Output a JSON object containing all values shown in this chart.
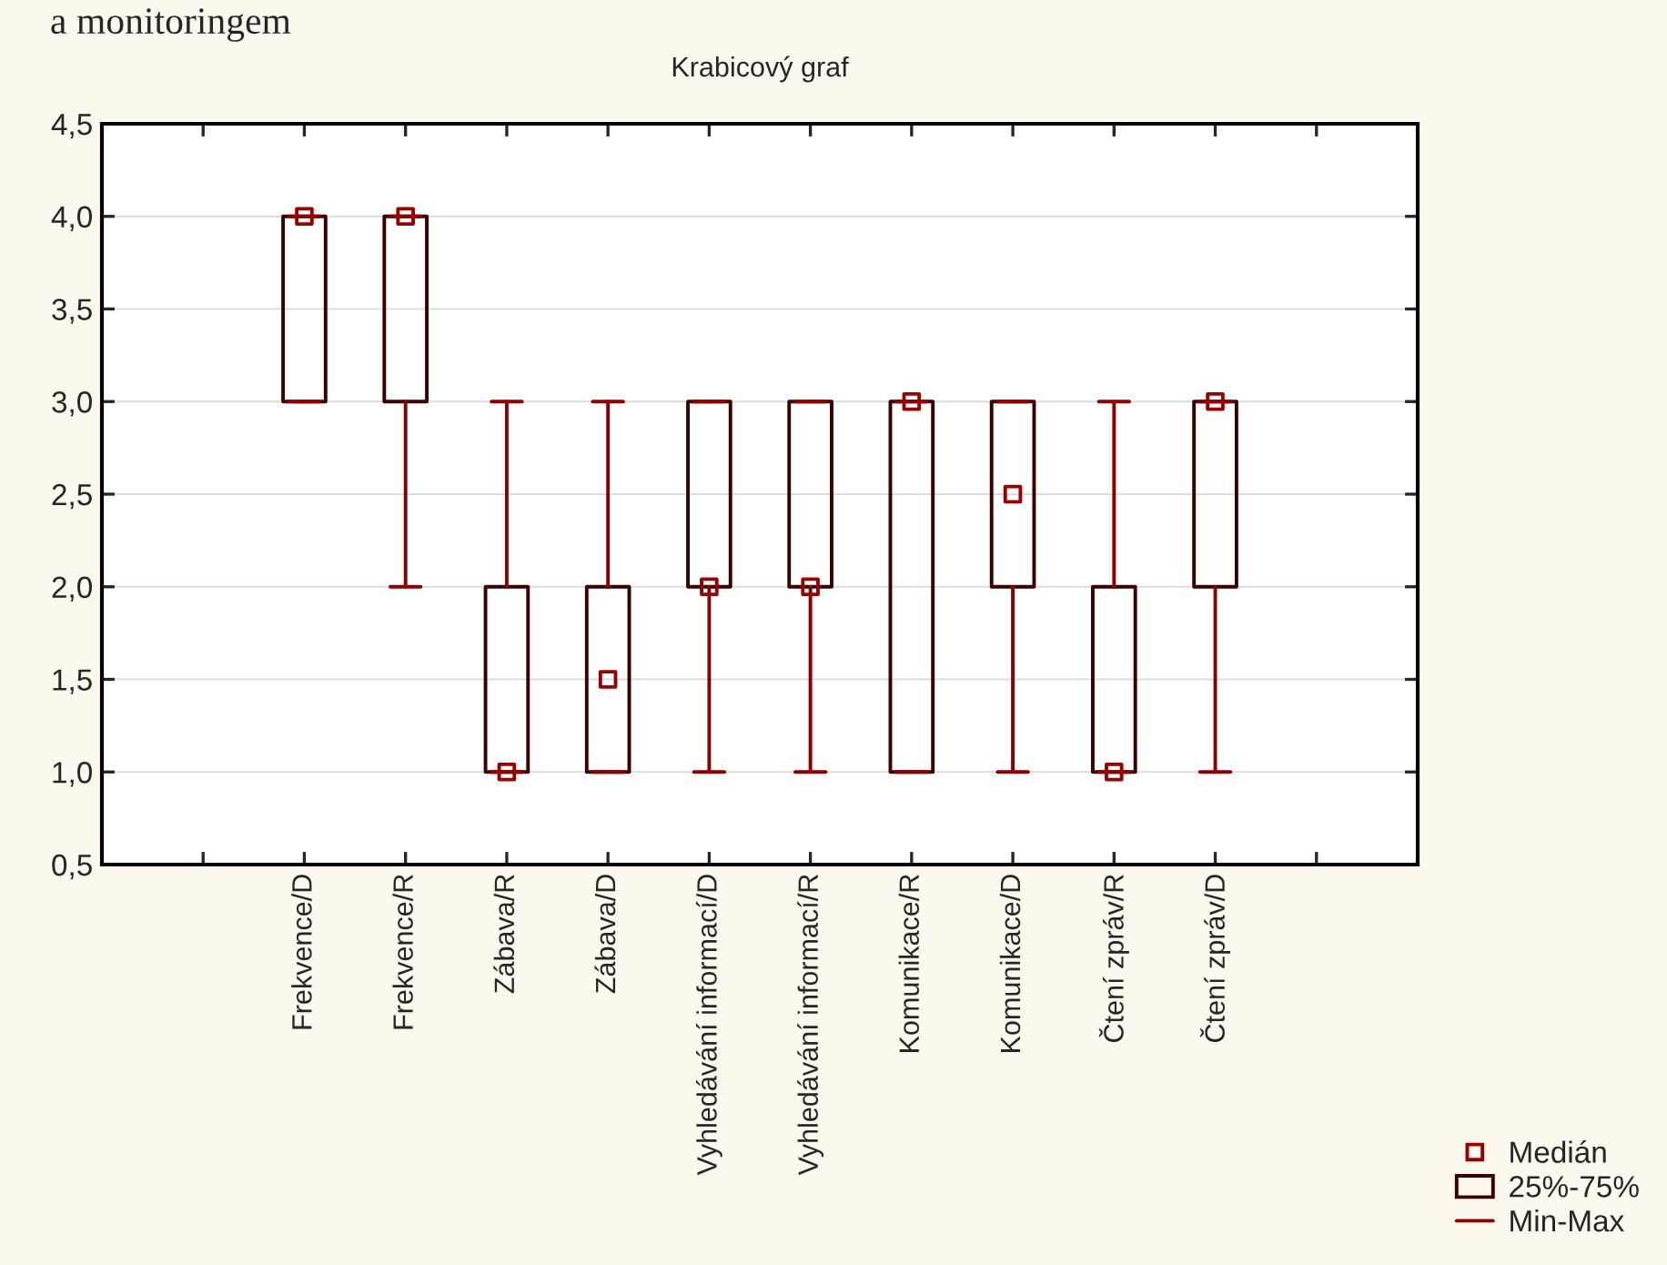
{
  "chart_data": {
    "type": "box",
    "title": "Krabicový graf",
    "annotations": [
      "a monitoringem",
      "Min-Max"
    ],
    "categories": [
      null,
      "Frekvence/D",
      "Frekvence/R",
      "Zábava/R",
      "Zábava/D",
      "Vyhledávání informací/D",
      "Vyhledávání informací/R",
      "Komunikace/R",
      "Komunikace/D",
      "Čtení zpráv/R",
      "Čtení zpráv/D",
      null
    ],
    "series": [
      {
        "name": "25%-75%",
        "color": "#3a0000",
        "boxes": [
          null,
          {
            "low": 3,
            "q1": 3,
            "q3": 4,
            "high": 4
          },
          {
            "low": 2,
            "q1": 3,
            "q3": 4,
            "high": 4
          },
          {
            "low": 1,
            "q1": 1,
            "q3": 2,
            "high": 3
          },
          {
            "low": 1,
            "q1": 1,
            "q3": 2,
            "high": 3
          },
          {
            "low": 1,
            "q1": 2,
            "q3": 3,
            "high": 3
          },
          {
            "low": 1,
            "q1": 2,
            "q3": 3,
            "high": 3
          },
          {
            "low": 1,
            "q1": 1,
            "q3": 3,
            "high": 3
          },
          {
            "low": 1,
            "q1": 2,
            "q3": 3,
            "high": 3
          },
          {
            "low": 1,
            "q1": 1,
            "q3": 2,
            "high": 3
          },
          {
            "low": 1,
            "q1": 2,
            "q3": 3,
            "high": 3
          },
          null
        ]
      },
      {
        "name": "Medián",
        "type": "scatter",
        "color": "#990000",
        "values": [
          null,
          4,
          4,
          1,
          1.5,
          2,
          2,
          3,
          2.5,
          1,
          3,
          null
        ]
      }
    ],
    "color": "#8b0000",
    "marker": "square",
    "ylim": [
      0.5,
      4.5
    ],
    "yticks": [
      {
        "value": 0.5,
        "label": "0,5"
      },
      {
        "value": 1,
        "label": "1,0"
      },
      {
        "value": 1.5,
        "label": "1,5"
      },
      {
        "value": 2,
        "label": "2,0"
      },
      {
        "value": 2.5,
        "label": "2,5"
      },
      {
        "value": 3,
        "label": "3,0"
      },
      {
        "value": 3.5,
        "label": "3,5"
      },
      {
        "value": 4,
        "label": "4,0"
      },
      {
        "value": 4.5,
        "label": "4,5"
      }
    ],
    "grid": "y",
    "legend": "bottom right"
  }
}
